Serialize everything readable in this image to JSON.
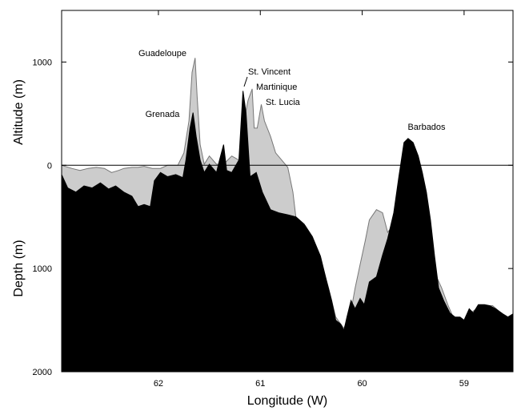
{
  "chart_data": {
    "type": "area",
    "x_label": "Longitude (W)",
    "y_label_top": "Altitude (m)",
    "y_label_bottom": "Depth (m)",
    "xlim": [
      62.95,
      58.52
    ],
    "xticks": [
      62,
      61,
      60,
      59
    ],
    "ylim": [
      -2000,
      1500
    ],
    "yticks": [
      {
        "value": -2000,
        "label": "2000"
      },
      {
        "value": -1000,
        "label": "1000"
      },
      0,
      1000
    ],
    "annotations": [
      "Guadeloupe",
      "Grenada",
      "St. Vincent",
      "Martinique",
      "St. Lucia",
      "Barbados"
    ],
    "series": [
      {
        "color": "#cccccc",
        "x": [
          62.95,
          62.85,
          62.77,
          62.69,
          62.61,
          62.53,
          62.46,
          62.39,
          62.34,
          62.26,
          62.2,
          62.14,
          62.06,
          61.98,
          61.91,
          61.81,
          61.75,
          61.7,
          61.67,
          61.64,
          61.62,
          61.59,
          61.55,
          61.5,
          61.43,
          61.36,
          61.28,
          61.21,
          61.16,
          61.12,
          61.08,
          61.06,
          61.03,
          60.99,
          60.96,
          60.9,
          60.85,
          60.79,
          60.73,
          60.68,
          60.65,
          60.57,
          60.49,
          60.41,
          60.33,
          60.26,
          60.18,
          60.11,
          60.07,
          60.02,
          59.97,
          59.93,
          59.86,
          59.8,
          59.75,
          59.69,
          59.64,
          59.59,
          59.55,
          59.5,
          59.45,
          59.41,
          59.35,
          59.31,
          59.27,
          59.22,
          59.16,
          59.09,
          59.03,
          58.96,
          58.88,
          58.8,
          58.72,
          58.65,
          58.57,
          58.52
        ],
        "values": [
          0,
          -30,
          -50,
          -30,
          -20,
          -30,
          -70,
          -50,
          -30,
          -20,
          -20,
          -10,
          -30,
          -30,
          0,
          0,
          120,
          430,
          900,
          1040,
          670,
          200,
          10,
          90,
          10,
          10,
          90,
          50,
          430,
          630,
          740,
          360,
          360,
          590,
          430,
          280,
          120,
          50,
          -20,
          -260,
          -510,
          -590,
          -690,
          -900,
          -1190,
          -1470,
          -1580,
          -1410,
          -1190,
          -960,
          -730,
          -530,
          -430,
          -460,
          -650,
          -570,
          -340,
          160,
          240,
          160,
          50,
          -190,
          -500,
          -810,
          -1080,
          -1190,
          -1350,
          -1510,
          -1550,
          -1450,
          -1390,
          -1360,
          -1360,
          -1420,
          -1490,
          -1470
        ]
      },
      {
        "color": "#000000",
        "x": [
          62.95,
          62.89,
          62.81,
          62.73,
          62.65,
          62.57,
          62.49,
          62.42,
          62.34,
          62.26,
          62.2,
          62.14,
          62.08,
          62.04,
          61.98,
          61.91,
          61.83,
          61.76,
          61.73,
          61.69,
          61.66,
          61.63,
          61.59,
          61.55,
          61.5,
          61.43,
          61.4,
          61.36,
          61.33,
          61.28,
          61.21,
          61.17,
          61.14,
          61.1,
          61.04,
          60.98,
          60.9,
          60.82,
          60.73,
          60.65,
          60.57,
          60.49,
          60.41,
          60.35,
          60.3,
          60.26,
          60.21,
          60.18,
          60.15,
          60.11,
          60.07,
          60.02,
          59.98,
          59.93,
          59.86,
          59.8,
          59.75,
          59.69,
          59.64,
          59.59,
          59.55,
          59.5,
          59.45,
          59.41,
          59.37,
          59.33,
          59.29,
          59.25,
          59.2,
          59.14,
          59.09,
          59.04,
          59.0,
          58.95,
          58.91,
          58.86,
          58.8,
          58.75,
          58.69,
          58.62,
          58.57,
          58.52
        ],
        "values": [
          -90,
          -220,
          -260,
          -200,
          -220,
          -170,
          -230,
          -200,
          -260,
          -300,
          -400,
          -380,
          -400,
          -150,
          -70,
          -110,
          -90,
          -120,
          50,
          360,
          510,
          280,
          50,
          -70,
          10,
          -70,
          50,
          200,
          -50,
          -70,
          50,
          720,
          510,
          -110,
          -70,
          -260,
          -430,
          -460,
          -480,
          -500,
          -570,
          -690,
          -880,
          -1120,
          -1310,
          -1500,
          -1540,
          -1600,
          -1470,
          -1310,
          -1390,
          -1290,
          -1350,
          -1130,
          -1080,
          -870,
          -710,
          -460,
          -110,
          220,
          260,
          220,
          90,
          -70,
          -260,
          -530,
          -880,
          -1190,
          -1310,
          -1430,
          -1470,
          -1470,
          -1500,
          -1390,
          -1430,
          -1350,
          -1350,
          -1360,
          -1390,
          -1440,
          -1470,
          -1440
        ]
      }
    ]
  }
}
